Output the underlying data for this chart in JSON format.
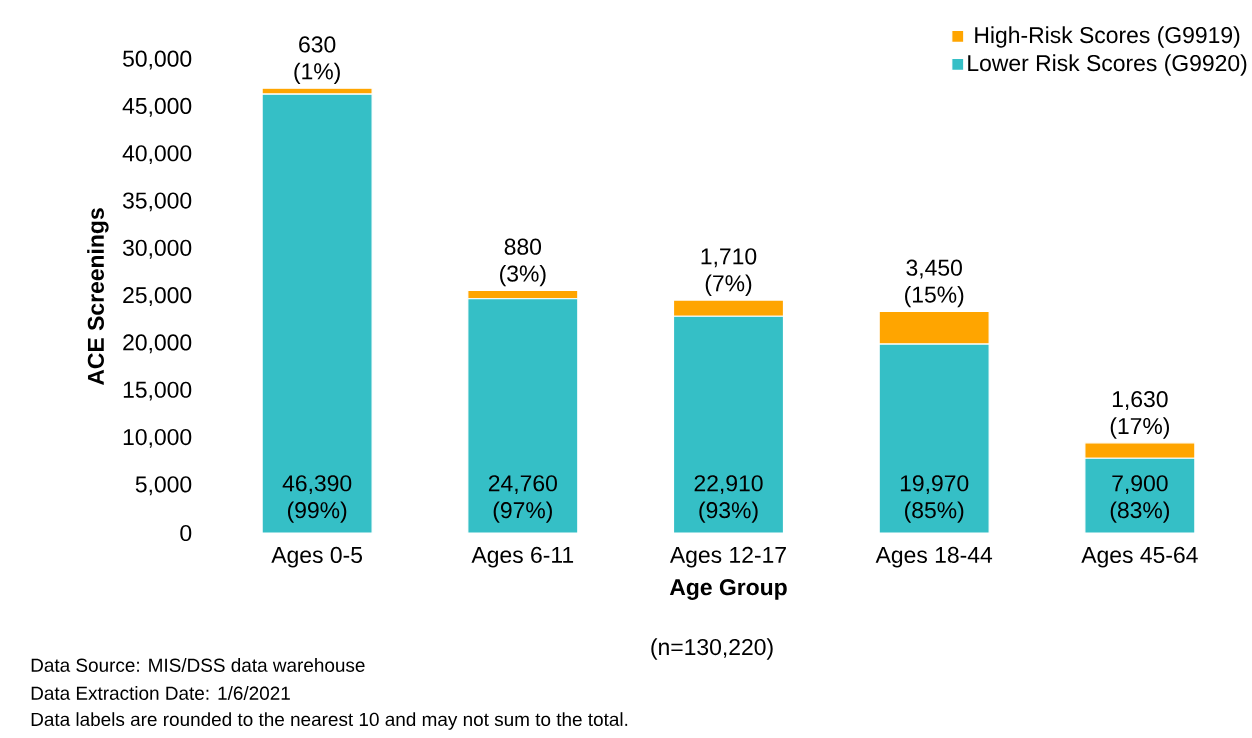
{
  "chart_data": {
    "type": "bar",
    "stacked": true,
    "xlabel": "Age Group",
    "ylabel": "ACE Screenings",
    "categories": [
      "Ages 0-5",
      "Ages 6-11",
      "Ages 12-17",
      "Ages 18-44",
      "Ages 45-64"
    ],
    "series": [
      {
        "name": "Lower Risk Scores (G9920)",
        "color": "#35bfc6",
        "values": [
          46390,
          24760,
          22910,
          19970,
          7900
        ],
        "value_labels": [
          "46,390 (99%)",
          "24,760 (97%)",
          "22,910 (93%)",
          "19,970 (85%)",
          "7,900 (83%)"
        ]
      },
      {
        "name": "High-Risk Scores (G9919)",
        "color": "#ffa500",
        "values": [
          630,
          880,
          1710,
          3450,
          1630
        ],
        "value_labels": [
          "630 (1%)",
          "880 (3%)",
          "1,710 (7%)",
          "3,450 (15%)",
          "1,630 (17%)"
        ]
      }
    ],
    "ylim": [
      0,
      50000
    ],
    "yticks": [
      {
        "value": 0,
        "label": "0"
      },
      {
        "value": 5000,
        "label": "5,000"
      },
      {
        "value": 10000,
        "label": "10,000"
      },
      {
        "value": 15000,
        "label": "15,000"
      },
      {
        "value": 20000,
        "label": "20,000"
      },
      {
        "value": 25000,
        "label": "25,000"
      },
      {
        "value": 30000,
        "label": "30,000"
      },
      {
        "value": 35000,
        "label": "35,000"
      },
      {
        "value": 40000,
        "label": "40,000"
      },
      {
        "value": 45000,
        "label": "45,000"
      },
      {
        "value": 50000,
        "label": "50,000"
      }
    ],
    "grid": false,
    "legend": "top right",
    "annotations": [
      "(n=130,220)",
      "Data Source: MIS/DSS data warehouse",
      "Data Extraction Date: 1/6/2021",
      "Data labels are rounded to the nearest 10 and may not sum to the total."
    ]
  }
}
